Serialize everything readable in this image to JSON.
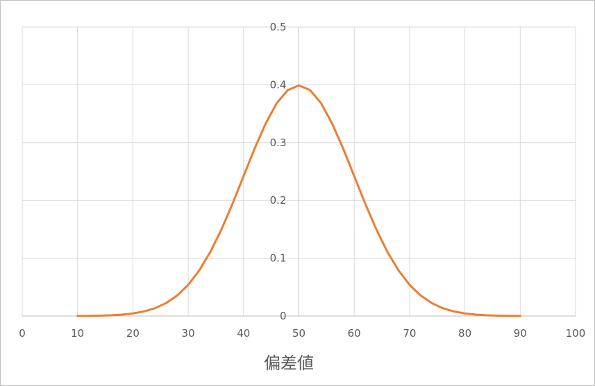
{
  "chart_data": {
    "type": "line",
    "title": "",
    "xlabel": "偏差値",
    "ylabel": "",
    "xlim": [
      0,
      100
    ],
    "ylim": [
      0,
      0.5
    ],
    "x_ticks": [
      "0",
      "10",
      "20",
      "30",
      "40",
      "50",
      "60",
      "70",
      "80",
      "90",
      "100"
    ],
    "y_ticks": [
      "0",
      "0.1",
      "0.2",
      "0.3",
      "0.4",
      "0.5"
    ],
    "y_axis_at_x": 50,
    "grid": true,
    "legend": "none",
    "colors": {
      "line": "#ed7d31",
      "grid": "#d9d9d9",
      "axis": "#bfbfbf",
      "text": "#595959"
    },
    "series": [
      {
        "x": [
          10,
          12,
          14,
          16,
          18,
          20,
          22,
          24,
          26,
          28,
          30,
          32,
          34,
          36,
          38,
          40,
          42,
          44,
          46,
          48,
          50,
          52,
          54,
          56,
          58,
          60,
          62,
          64,
          66,
          68,
          70,
          72,
          74,
          76,
          78,
          80,
          82,
          84,
          86,
          88,
          90
        ],
        "values": [
          0.0001,
          0.0003,
          0.0006,
          0.0012,
          0.0024,
          0.0044,
          0.0079,
          0.0136,
          0.0224,
          0.0355,
          0.054,
          0.079,
          0.1109,
          0.1497,
          0.1942,
          0.242,
          0.2897,
          0.3332,
          0.3683,
          0.391,
          0.3989,
          0.391,
          0.3683,
          0.3332,
          0.2897,
          0.242,
          0.1942,
          0.1497,
          0.1109,
          0.079,
          0.054,
          0.0355,
          0.0224,
          0.0136,
          0.0079,
          0.0044,
          0.0024,
          0.0012,
          0.0006,
          0.0003,
          0.0001
        ]
      }
    ]
  }
}
